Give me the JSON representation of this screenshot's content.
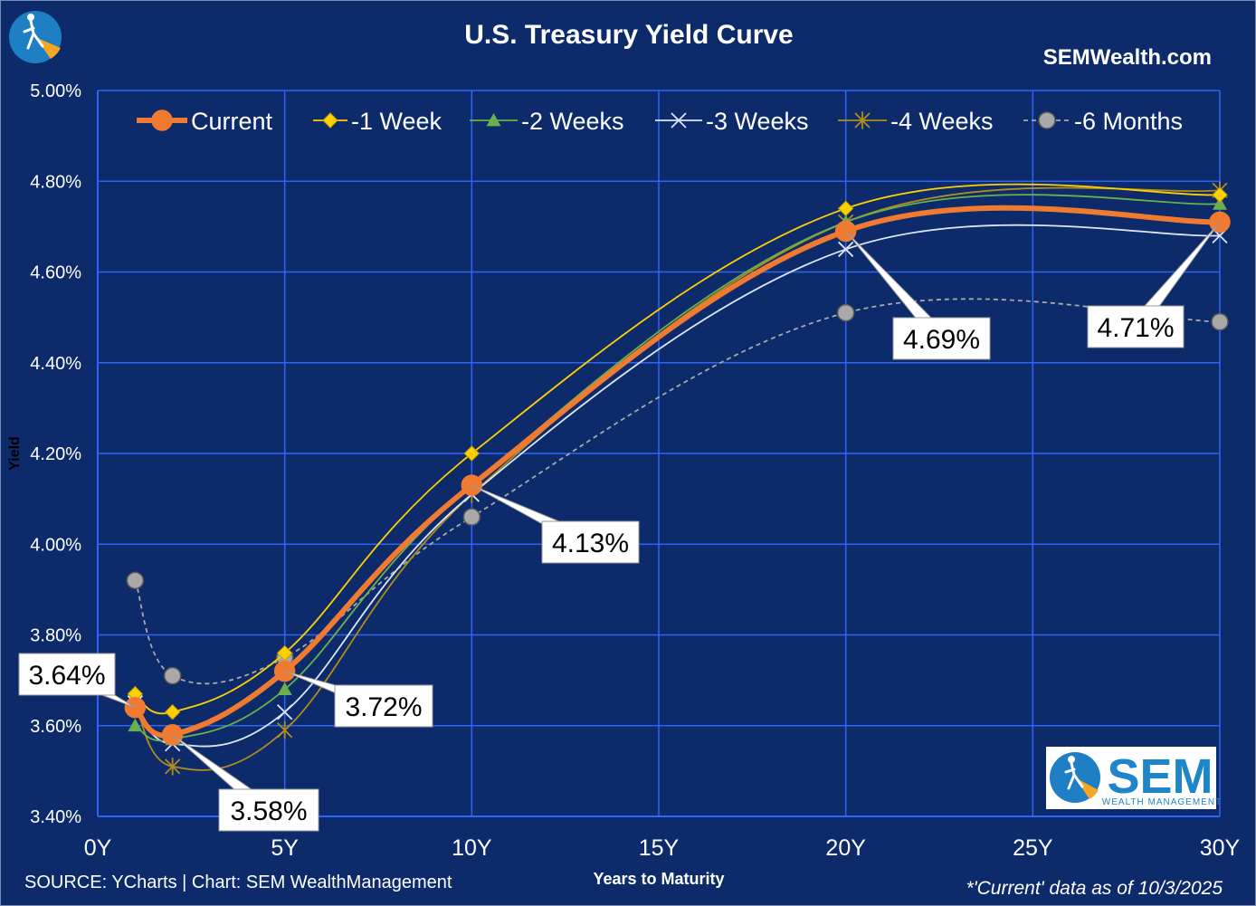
{
  "header": {
    "site": "SEMWealth.com"
  },
  "footer": {
    "source": "SOURCE: YCharts | Chart: SEM WealthManagement",
    "as_of": "*'Current' data as of 10/3/2025"
  },
  "logo": {
    "big": "SEM",
    "small": "WEALTH MANAGEMENT"
  },
  "chart_data": {
    "type": "line",
    "title": "U.S. Treasury Yield Curve",
    "xlabel": "Years to Maturity",
    "ylabel": "Yield",
    "xlim": [
      0,
      30
    ],
    "ylim": [
      3.4,
      5.0
    ],
    "x_ticks": [
      0,
      5,
      10,
      15,
      20,
      25,
      30
    ],
    "x_tick_labels": [
      "0Y",
      "5Y",
      "10Y",
      "15Y",
      "20Y",
      "25Y",
      "30Y"
    ],
    "y_ticks": [
      3.4,
      3.6,
      3.8,
      4.0,
      4.2,
      4.4,
      4.6,
      4.8,
      5.0
    ],
    "y_tick_labels": [
      "3.40%",
      "3.60%",
      "3.80%",
      "4.00%",
      "4.20%",
      "4.40%",
      "4.60%",
      "4.80%",
      "5.00%"
    ],
    "x": [
      1,
      2,
      5,
      10,
      20,
      30
    ],
    "grid": true,
    "legend_position": "top",
    "series": [
      {
        "name": "Current",
        "values": [
          3.64,
          3.58,
          3.72,
          4.13,
          4.69,
          4.71
        ],
        "color": "#f07a30",
        "marker": "circle",
        "style": "thick"
      },
      {
        "name": "-1 Week",
        "values": [
          3.67,
          3.63,
          3.76,
          4.2,
          4.74,
          4.77
        ],
        "color": "#ffd000",
        "marker": "diamond",
        "style": "solid"
      },
      {
        "name": "-2 Weeks",
        "values": [
          3.6,
          3.57,
          3.68,
          4.13,
          4.71,
          4.75
        ],
        "color": "#6ab04c",
        "marker": "triangle",
        "style": "solid"
      },
      {
        "name": "-3 Weeks",
        "values": [
          3.65,
          3.56,
          3.63,
          4.11,
          4.65,
          4.68
        ],
        "color": "#dbe6f6",
        "marker": "x",
        "style": "solid"
      },
      {
        "name": "-4 Weeks",
        "values": [
          3.65,
          3.51,
          3.59,
          4.11,
          4.71,
          4.78
        ],
        "color": "#b08d1a",
        "marker": "star",
        "style": "solid"
      },
      {
        "name": "-6 Months",
        "values": [
          3.92,
          3.71,
          3.75,
          4.06,
          4.51,
          4.49
        ],
        "color": "#a9a9a9",
        "marker": "circle",
        "style": "dashed"
      }
    ],
    "annotations": [
      {
        "label": "3.64%",
        "x": 1,
        "y": 3.64
      },
      {
        "label": "3.58%",
        "x": 2,
        "y": 3.58
      },
      {
        "label": "3.72%",
        "x": 5,
        "y": 3.72
      },
      {
        "label": "4.13%",
        "x": 10,
        "y": 4.13
      },
      {
        "label": "4.69%",
        "x": 20,
        "y": 4.69
      },
      {
        "label": "4.71%",
        "x": 30,
        "y": 4.71
      }
    ]
  }
}
